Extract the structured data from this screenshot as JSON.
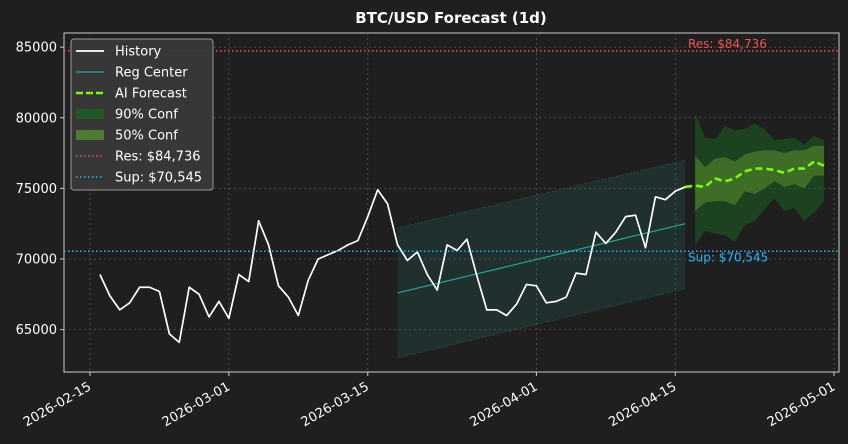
{
  "chart_data": {
    "type": "line",
    "title": "BTC/USD Forecast (1d)",
    "xlabel": "",
    "ylabel": "",
    "ylim": [
      62000,
      86000
    ],
    "xlim": [
      "2026-02-15",
      "2026-05-01"
    ],
    "grid": true,
    "legend_position": "top-left",
    "x_ticks": [
      "2026-02-15",
      "2026-03-01",
      "2026-03-15",
      "2026-04-01",
      "2026-04-15",
      "2026-05-01"
    ],
    "y_ticks": [
      65000,
      70000,
      75000,
      80000,
      85000
    ],
    "y_tick_labels": [
      "65000",
      "70000",
      "75000",
      "80000",
      "85000"
    ],
    "legend": [
      {
        "label": "History",
        "style": "line",
        "color": "#ffffff"
      },
      {
        "label": "Reg Center",
        "style": "line",
        "color": "#26a69a"
      },
      {
        "label": "AI Forecast",
        "style": "dashed",
        "color": "#76ff03"
      },
      {
        "label": "90% Conf",
        "style": "patch",
        "color": "#1b5e20"
      },
      {
        "label": "50% Conf",
        "style": "patch",
        "color": "#558b2f"
      },
      {
        "label": "Res: $84,736",
        "style": "dotted",
        "color": "#ef5350"
      },
      {
        "label": "Sup: $70,545",
        "style": "dotted",
        "color": "#29b6f6"
      }
    ],
    "annotations": {
      "resistance": {
        "label": "Res: $84,736",
        "value": 84736,
        "color": "#ef5350"
      },
      "support": {
        "label": "Sup: $70,545",
        "value": 70545,
        "color": "#29b6f6"
      }
    },
    "history": {
      "name": "History",
      "color": "#ffffff",
      "x": [
        "2026-02-16",
        "2026-02-17",
        "2026-02-18",
        "2026-02-19",
        "2026-02-20",
        "2026-02-21",
        "2026-02-22",
        "2026-02-23",
        "2026-02-24",
        "2026-02-25",
        "2026-02-26",
        "2026-02-27",
        "2026-02-28",
        "2026-03-01",
        "2026-03-02",
        "2026-03-03",
        "2026-03-04",
        "2026-03-05",
        "2026-03-06",
        "2026-03-07",
        "2026-03-08",
        "2026-03-09",
        "2026-03-10",
        "2026-03-11",
        "2026-03-12",
        "2026-03-13",
        "2026-03-14",
        "2026-03-15",
        "2026-03-16",
        "2026-03-17",
        "2026-03-18",
        "2026-03-19",
        "2026-03-20",
        "2026-03-21",
        "2026-03-22",
        "2026-03-23",
        "2026-03-24",
        "2026-03-25",
        "2026-03-26",
        "2026-03-27",
        "2026-03-28",
        "2026-03-29",
        "2026-03-30",
        "2026-03-31",
        "2026-04-01",
        "2026-04-02",
        "2026-04-03",
        "2026-04-04",
        "2026-04-05",
        "2026-04-06",
        "2026-04-07",
        "2026-04-08",
        "2026-04-09",
        "2026-04-10",
        "2026-04-11",
        "2026-04-12",
        "2026-04-13",
        "2026-04-14",
        "2026-04-15",
        "2026-04-16"
      ],
      "values": [
        68900,
        67400,
        66400,
        66900,
        68000,
        68000,
        67700,
        64700,
        64100,
        68000,
        67500,
        65900,
        67000,
        65800,
        68900,
        68400,
        72700,
        71000,
        68100,
        67300,
        66000,
        68500,
        70000,
        70300,
        70600,
        71000,
        71300,
        73000,
        74900,
        73900,
        71000,
        69900,
        70500,
        68900,
        67800,
        71000,
        70600,
        71400,
        68800,
        66400,
        66400,
        66000,
        66800,
        68200,
        68100,
        66900,
        67000,
        67300,
        69000,
        68900,
        71900,
        71100,
        71900,
        73000,
        73100,
        70800,
        74400,
        74200,
        74800,
        75100
      ]
    },
    "regression": {
      "name": "Reg Center",
      "color": "#26a69a",
      "x_start": "2026-03-18",
      "x_end": "2026-04-16",
      "center": [
        67600,
        72500
      ],
      "upper": [
        72200,
        77000
      ],
      "lower": [
        63000,
        67900
      ]
    },
    "forecast": {
      "name": "AI Forecast",
      "color": "#76ff03",
      "x": [
        "2026-04-16",
        "2026-04-17",
        "2026-04-18",
        "2026-04-19",
        "2026-04-20",
        "2026-04-21",
        "2026-04-22",
        "2026-04-23",
        "2026-04-24",
        "2026-04-25",
        "2026-04-26",
        "2026-04-27",
        "2026-04-28",
        "2026-04-29",
        "2026-04-30"
      ],
      "values": [
        75100,
        75200,
        75100,
        75700,
        75500,
        75700,
        76200,
        76400,
        76400,
        76300,
        76100,
        76400,
        76400,
        76900,
        76600
      ],
      "conf90_upper": [
        null,
        80300,
        78600,
        78500,
        79400,
        79100,
        79200,
        79600,
        79200,
        78400,
        78500,
        78600,
        78100,
        78700,
        78400
      ],
      "conf90_lower": [
        null,
        70900,
        72000,
        71800,
        71700,
        71200,
        72400,
        72700,
        73500,
        74300,
        73400,
        73600,
        72700,
        73300,
        74100
      ],
      "conf50_upper": [
        null,
        77300,
        76500,
        77100,
        77200,
        76900,
        77400,
        77600,
        77700,
        77700,
        77500,
        77700,
        77700,
        78000,
        78000
      ],
      "conf50_lower": [
        null,
        73400,
        74000,
        74100,
        74100,
        73800,
        74800,
        74600,
        75000,
        75500,
        75100,
        75300,
        75000,
        75900,
        75900
      ]
    }
  }
}
